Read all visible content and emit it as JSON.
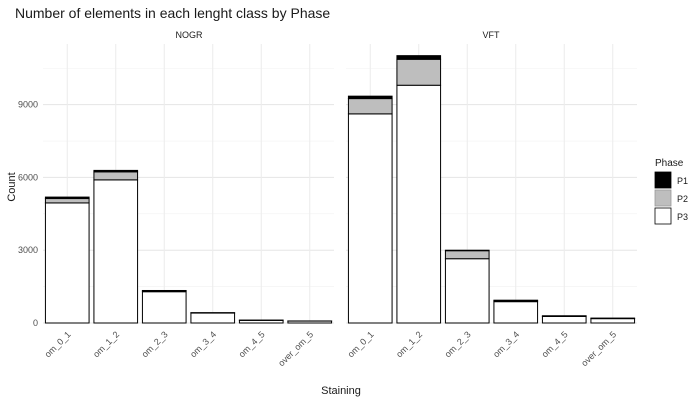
{
  "chart_data": {
    "type": "bar",
    "stacked": true,
    "title": "Number of elements in each lenght class by Phase",
    "xlabel": "Staining",
    "ylabel": "Count",
    "ylim": [
      0,
      11500
    ],
    "y_ticks": [
      0,
      3000,
      6000,
      9000
    ],
    "y_tick_labels": [
      "0",
      "3000",
      "6000",
      "9000"
    ],
    "grid": true,
    "categories": [
      "om_0_1",
      "om_1_2",
      "om_2_3",
      "om_3_4",
      "om_4_5",
      "over_om_5"
    ],
    "legend": {
      "title": "Phase",
      "placement": "right"
    },
    "series_colors": {
      "P1": "#000000",
      "P2": "#bebebe",
      "P3": "#ffffff"
    },
    "panels": [
      {
        "label": "NOGR",
        "series": [
          {
            "name": "P1",
            "values": [
              60,
              60,
              10,
              5,
              2,
              1
            ]
          },
          {
            "name": "P2",
            "values": [
              180,
              330,
              40,
              10,
              5,
              3
            ]
          },
          {
            "name": "P3",
            "values": [
              4950,
              5900,
              1290,
              410,
              110,
              80
            ]
          }
        ]
      },
      {
        "label": "VFT",
        "series": [
          {
            "name": "P1",
            "values": [
              100,
              150,
              20,
              20,
              8,
              5
            ]
          },
          {
            "name": "P2",
            "values": [
              630,
              1070,
              330,
              40,
              20,
              15
            ]
          },
          {
            "name": "P3",
            "values": [
              8620,
              9800,
              2650,
              880,
              270,
              180
            ]
          }
        ]
      }
    ]
  }
}
